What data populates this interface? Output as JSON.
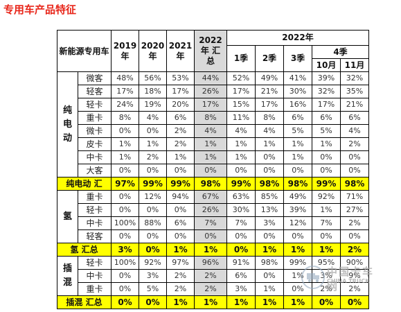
{
  "title": "专用车产品特征",
  "header": {
    "category_label": "新能源专用车",
    "y2019": "2019\n年",
    "y2020": "2020\n年",
    "y2021": "2021\n年",
    "y2022_total": "2022\n年 汇\n总",
    "y2022_group": "2022年",
    "q1": "1季",
    "q2": "2季",
    "q3": "3季",
    "q4": "4季",
    "oct": "10月",
    "nov": "11月"
  },
  "groups": [
    {
      "name": "纯\n电\n动",
      "rows": [
        {
          "type": "微客",
          "values": [
            "48%",
            "56%",
            "53%",
            "44%",
            "52%",
            "49%",
            "41%",
            "39%",
            "32%"
          ]
        },
        {
          "type": "轻客",
          "values": [
            "17%",
            "18%",
            "17%",
            "26%",
            "17%",
            "21%",
            "30%",
            "32%",
            "35%"
          ]
        },
        {
          "type": "轻卡",
          "values": [
            "24%",
            "19%",
            "20%",
            "17%",
            "15%",
            "17%",
            "16%",
            "17%",
            "21%"
          ]
        },
        {
          "type": "重卡",
          "values": [
            "8%",
            "4%",
            "6%",
            "8%",
            "11%",
            "8%",
            "6%",
            "6%",
            "6%"
          ]
        },
        {
          "type": "微卡",
          "values": [
            "0%",
            "0%",
            "2%",
            "4%",
            "4%",
            "4%",
            "5%",
            "5%",
            "4%"
          ]
        },
        {
          "type": "皮卡",
          "values": [
            "1%",
            "1%",
            "2%",
            "1%",
            "1%",
            "1%",
            "1%",
            "1%",
            "2%"
          ]
        },
        {
          "type": "中卡",
          "values": [
            "1%",
            "2%",
            "1%",
            "1%",
            "1%",
            "0%",
            "1%",
            "0%",
            "0%"
          ]
        },
        {
          "type": "大客",
          "values": [
            "0%",
            "0%",
            "0%",
            "0%",
            "0%",
            "0%",
            "0%",
            "0%",
            "0%"
          ]
        }
      ],
      "total": {
        "label": "纯电动 汇",
        "values": [
          "97%",
          "99%",
          "99%",
          "98%",
          "99%",
          "98%",
          "98%",
          "99%",
          "98%"
        ]
      }
    },
    {
      "name": "氢",
      "rows": [
        {
          "type": "重卡",
          "values": [
            "0%",
            "12%",
            "94%",
            "67%",
            "63%",
            "85%",
            "49%",
            "92%",
            "71%"
          ]
        },
        {
          "type": "轻卡",
          "values": [
            "0%",
            "0%",
            "0%",
            "26%",
            "30%",
            "13%",
            "39%",
            "1%",
            "27%"
          ]
        },
        {
          "type": "中卡",
          "values": [
            "100%",
            "88%",
            "6%",
            "7%",
            "7%",
            "3%",
            "12%",
            "7%",
            "2%"
          ]
        },
        {
          "type": "轻客",
          "values": [
            "0%",
            "0%",
            "0%",
            "0%",
            "0%",
            "0%",
            "0%",
            "0%",
            "0%"
          ]
        }
      ],
      "total": {
        "label": "氢 汇总",
        "values": [
          "3%",
          "0%",
          "1%",
          "1%",
          "0%",
          "1%",
          "1%",
          "1%",
          "2%"
        ]
      }
    },
    {
      "name": "插\n混",
      "rows": [
        {
          "type": "轻卡",
          "values": [
            "100%",
            "92%",
            "97%",
            "96%",
            "91%",
            "98%",
            "99%",
            "95%",
            "90%"
          ]
        },
        {
          "type": "中卡",
          "values": [
            "0%",
            "3%",
            "2%",
            "2%",
            "6%",
            "0%",
            "1%",
            "3%",
            "9%"
          ]
        },
        {
          "type": "重卡",
          "values": [
            "0%",
            "5%",
            "2%",
            "2%",
            "3%",
            "1%",
            "0%",
            "2%",
            "2%"
          ]
        }
      ],
      "total": {
        "label": "插混 汇总",
        "values": [
          "0%",
          "0%",
          "1%",
          "1%",
          "1%",
          "1%",
          "1%",
          "0%",
          "0%"
        ]
      }
    }
  ],
  "watermark": {
    "text_cn": "中国卡车网",
    "text_en": "CHINA TRUCK"
  }
}
